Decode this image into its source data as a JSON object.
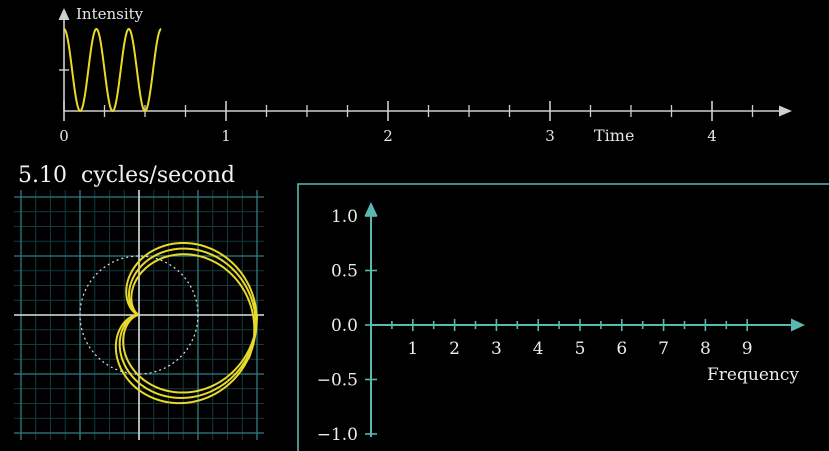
{
  "top_plot": {
    "y_label": "Intensity",
    "x_label": "Time",
    "x_ticks": [
      "0",
      "1",
      "2",
      "3",
      "4"
    ],
    "x_range": [
      0,
      4.4
    ],
    "signal": {
      "duration": 0.6,
      "frequency": 5,
      "baseline": 1,
      "amplitude": 1,
      "color": "#e8d92a"
    }
  },
  "winding": {
    "frequency_value": "5.10",
    "frequency_unit": "cycles/second",
    "frequency_numeric": 5.1,
    "signal_frequency": 5,
    "duration": 0.6,
    "curve_color": "#e8d92a",
    "grid_color": "#1f5f66",
    "circle_style": "dotted"
  },
  "frequency_plot": {
    "x_label": "Frequency",
    "x_ticks": [
      "1",
      "2",
      "3",
      "4",
      "5",
      "6",
      "7",
      "8",
      "9"
    ],
    "y_ticks": [
      "1.0",
      "0.5",
      "0.0",
      "−0.5",
      "−1.0"
    ],
    "y_range": [
      -1.0,
      1.0
    ],
    "axis_color": "#5ab8b0",
    "frame_color": "#5ab8b0"
  }
}
